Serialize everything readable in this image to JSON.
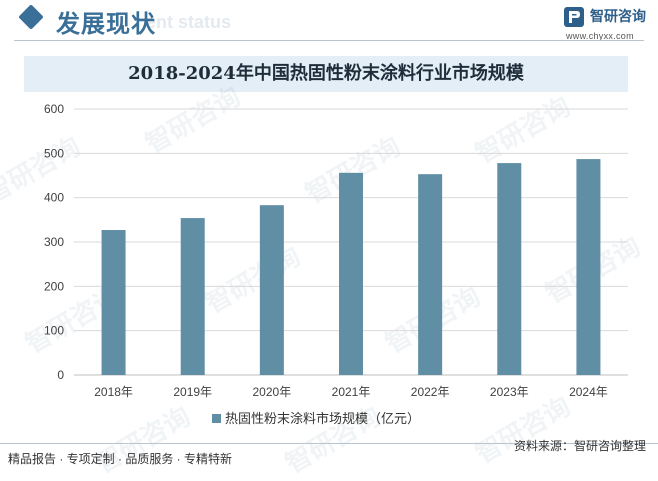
{
  "header": {
    "section_title": "发展现状",
    "section_subtitle": "ent status",
    "logo_text": "智研咨询",
    "logo_url": "www.chyxx.com"
  },
  "footer": {
    "left": "精品报告 · 专项定制 · 品质服务 · 专精特新",
    "source": "资料来源：智研咨询整理"
  },
  "watermark_text": "智研咨询",
  "colors": {
    "bar": "#5f8ea5",
    "accent": "#3a6f98",
    "grid": "#d9d9d9"
  },
  "chart_data": {
    "type": "bar",
    "title": "2018-2024年中国热固性粉末涂料行业市场规模",
    "categories": [
      "2018年",
      "2019年",
      "2020年",
      "2021年",
      "2022年",
      "2023年",
      "2024年"
    ],
    "series": [
      {
        "name": "热固性粉末涂料市场规模（亿元）",
        "values": [
          327,
          354,
          383,
          456,
          453,
          478,
          487
        ]
      }
    ],
    "ylim": [
      0,
      600
    ],
    "yticks": [
      0,
      100,
      200,
      300,
      400,
      500,
      600
    ],
    "grid": true,
    "legend": "bottom-center",
    "xlabel": "",
    "ylabel": ""
  }
}
